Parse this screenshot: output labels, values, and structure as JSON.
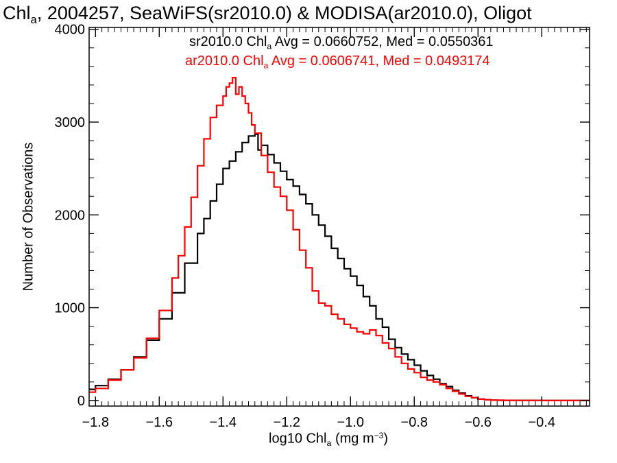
{
  "chart_data": {
    "type": "line",
    "title": {
      "pre": "Chl",
      "sub": "a",
      "post": ", 2004257, SeaWiFS(sr2010.0) & MODISA(ar2010.0), Oligot"
    },
    "xlabel": {
      "pre": "log10 Chl",
      "sub": "a",
      "mid": " (mg m",
      "sup": "−3",
      "post": ")"
    },
    "ylabel": "Number of Observations",
    "xlim": [
      -1.82,
      -0.25
    ],
    "ylim": [
      -60,
      4020
    ],
    "xticks": [
      -1.8,
      -1.6,
      -1.4,
      -1.2,
      -1.0,
      -0.8,
      -0.6,
      -0.4
    ],
    "xtick_labels": [
      "−1.8",
      "−1.6",
      "−1.4",
      "−1.2",
      "−1.0",
      "−0.8",
      "−0.6",
      "−0.4"
    ],
    "yticks": [
      0,
      1000,
      2000,
      3000,
      4000
    ],
    "ytick_labels": [
      "0",
      "1000",
      "2000",
      "3000",
      "4000"
    ],
    "grid": false,
    "legend_placement": "top-right",
    "series": [
      {
        "legend": {
          "pre": "sr2010.0 Chl",
          "sub": "a",
          "post": " Avg = 0.0660752, Med = 0.0550361"
        },
        "color": "#000000",
        "step": "hist",
        "x": [
          -1.82,
          -1.8,
          -1.76,
          -1.72,
          -1.68,
          -1.64,
          -1.6,
          -1.56,
          -1.52,
          -1.48,
          -1.46,
          -1.44,
          -1.42,
          -1.4,
          -1.38,
          -1.36,
          -1.34,
          -1.32,
          -1.3,
          -1.29,
          -1.28,
          -1.26,
          -1.24,
          -1.22,
          -1.2,
          -1.18,
          -1.16,
          -1.14,
          -1.12,
          -1.1,
          -1.08,
          -1.06,
          -1.04,
          -1.02,
          -1.0,
          -0.98,
          -0.96,
          -0.94,
          -0.92,
          -0.9,
          -0.88,
          -0.86,
          -0.84,
          -0.82,
          -0.8,
          -0.78,
          -0.76,
          -0.74,
          -0.72,
          -0.7,
          -0.68,
          -0.66,
          -0.64,
          -0.62,
          -0.6,
          -0.58,
          -0.56,
          -0.54,
          -0.52,
          -0.5,
          -0.45,
          -0.4,
          -0.35,
          -0.3,
          -0.25
        ],
        "y": [
          120,
          160,
          230,
          330,
          470,
          650,
          880,
          1160,
          1480,
          1800,
          1960,
          2150,
          2330,
          2500,
          2580,
          2680,
          2780,
          2850,
          2870,
          2700,
          2750,
          2650,
          2560,
          2470,
          2380,
          2310,
          2220,
          2120,
          2000,
          1890,
          1770,
          1640,
          1530,
          1420,
          1340,
          1240,
          1120,
          1020,
          880,
          790,
          660,
          570,
          500,
          440,
          380,
          320,
          270,
          230,
          180,
          150,
          110,
          80,
          50,
          30,
          15,
          8,
          4,
          3,
          2,
          1,
          1,
          0,
          0,
          0,
          0
        ]
      },
      {
        "legend": {
          "pre": "ar2010.0 Chl",
          "sub": "a",
          "post": " Avg = 0.0606741, Med = 0.0493174"
        },
        "color": "#ff0000",
        "step": "hist",
        "x": [
          -1.82,
          -1.8,
          -1.76,
          -1.72,
          -1.68,
          -1.64,
          -1.6,
          -1.56,
          -1.54,
          -1.52,
          -1.5,
          -1.48,
          -1.46,
          -1.44,
          -1.42,
          -1.4,
          -1.39,
          -1.38,
          -1.37,
          -1.36,
          -1.35,
          -1.34,
          -1.33,
          -1.32,
          -1.31,
          -1.3,
          -1.28,
          -1.26,
          -1.24,
          -1.22,
          -1.2,
          -1.18,
          -1.16,
          -1.14,
          -1.12,
          -1.1,
          -1.08,
          -1.06,
          -1.04,
          -1.02,
          -1.0,
          -0.98,
          -0.96,
          -0.94,
          -0.92,
          -0.9,
          -0.88,
          -0.86,
          -0.84,
          -0.82,
          -0.8,
          -0.78,
          -0.76,
          -0.74,
          -0.72,
          -0.7,
          -0.68,
          -0.66,
          -0.64,
          -0.62,
          -0.6,
          -0.58,
          -0.56,
          -0.54,
          -0.52,
          -0.5,
          -0.45,
          -0.4,
          -0.35,
          -0.3,
          -0.25
        ],
        "y": [
          90,
          130,
          220,
          330,
          460,
          670,
          970,
          1320,
          1560,
          1870,
          2190,
          2530,
          2820,
          3050,
          3180,
          3280,
          3380,
          3420,
          3480,
          3300,
          3380,
          3280,
          3200,
          3100,
          2970,
          2880,
          2640,
          2460,
          2300,
          2200,
          2050,
          1840,
          1620,
          1430,
          1180,
          1050,
          1020,
          930,
          880,
          820,
          780,
          740,
          720,
          760,
          700,
          620,
          560,
          470,
          400,
          340,
          300,
          250,
          220,
          200,
          170,
          130,
          100,
          70,
          45,
          30,
          15,
          8,
          4,
          3,
          2,
          1,
          1,
          0,
          0,
          0,
          0
        ]
      }
    ]
  }
}
